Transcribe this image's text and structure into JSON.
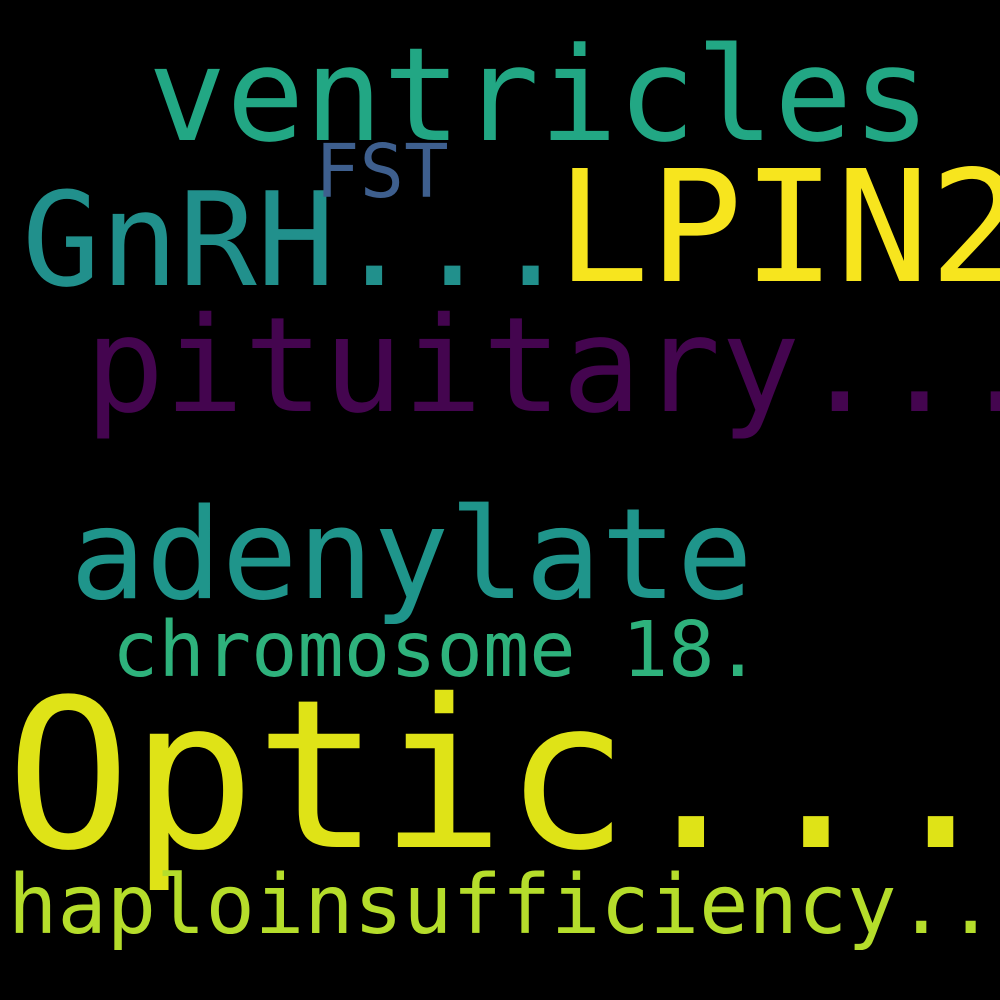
{
  "background": "#000000",
  "words": {
    "ventricles": {
      "text": "ventricles",
      "color": "#22a784"
    },
    "lpin2": {
      "text": "LPIN2",
      "color": "#f7e51e"
    },
    "gnrh": {
      "text": "GnRH...",
      "color": "#21908c"
    },
    "fst": {
      "text": "FST",
      "color": "#3e5f8e"
    },
    "pituitary": {
      "text": "pituitary...",
      "color": "#44054f"
    },
    "adenylate": {
      "text": "adenylate",
      "color": "#1f958b"
    },
    "chromosome": {
      "text": "chromosome 18.",
      "color": "#2eb27c"
    },
    "optic": {
      "text": "Optic...",
      "color": "#dfe317"
    },
    "haplo": {
      "text": "haploinsufficiency...",
      "color": "#b5dd2b"
    }
  }
}
